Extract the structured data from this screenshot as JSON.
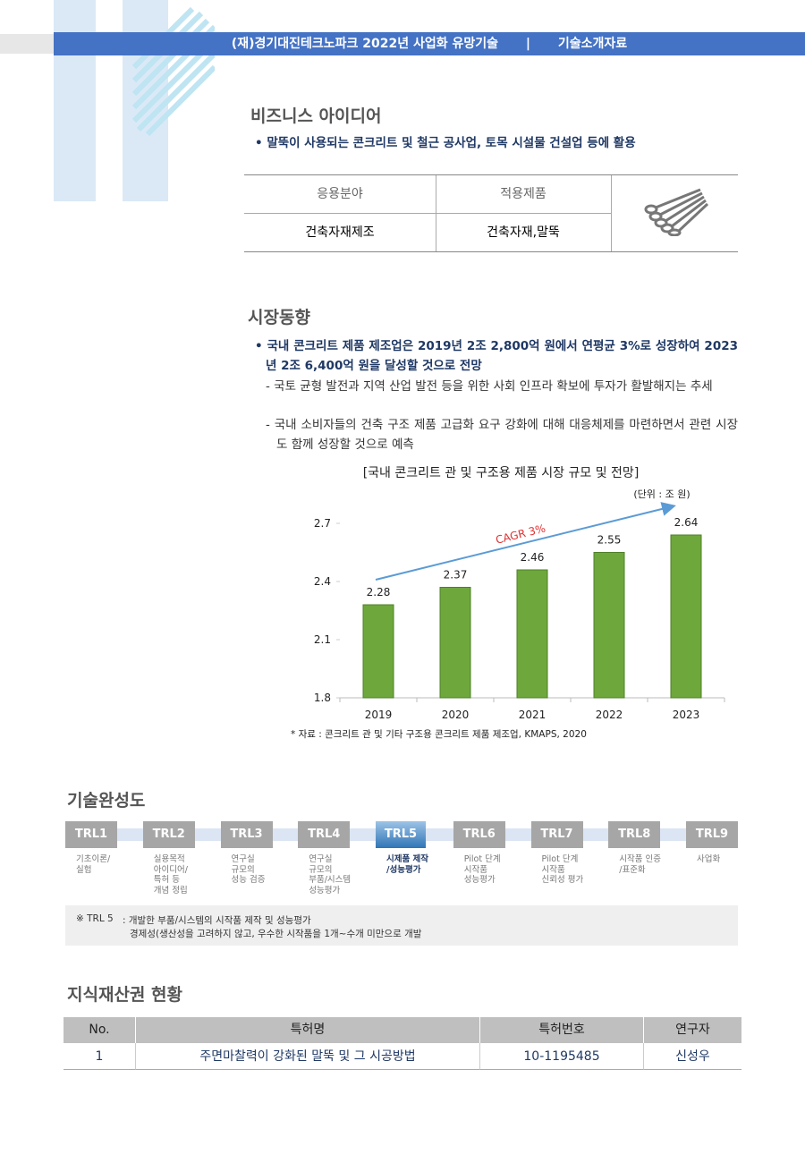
{
  "header": {
    "title": "(재)경기대진테크노파크 2022년 사업화 유망기술",
    "separator": "|",
    "subtitle": "기술소개자료"
  },
  "business": {
    "title": "비즈니스 아이디어",
    "bullet": "말뚝이 사용되는 콘크리트 및 철근 공사업, 토목 시설물 건설업 등에 활용",
    "table": {
      "headers": [
        "응용분야",
        "적용제품"
      ],
      "row": [
        "건축자재제조",
        "건축자재,말뚝"
      ]
    }
  },
  "market": {
    "title": "시장동향",
    "bullet": "국내 콘크리트 제품 제조업은 2019년 2조 2,800억 원에서 연평균 3%로 성장하여 2023년 2조 6,400억 원을 달성할 것으로 전망",
    "subs": [
      "국토 균형 발전과 지역 산업 발전 등을 위한 사회 인프라 확보에 투자가 활발해지는 추세",
      "국내 소비자들의 건축 구조 제품 고급화 요구 강화에 대해 대응체제를 마련하면서 관련 시장도 함께 성장할 것으로 예측"
    ]
  },
  "chart_data": {
    "type": "bar",
    "title": "[국내 콘크리트 관 및 구조용 제품 시장 규모 및 전망]",
    "unit": "(단위 : 조 원)",
    "categories": [
      "2019",
      "2020",
      "2021",
      "2022",
      "2023"
    ],
    "values": [
      2.28,
      2.37,
      2.46,
      2.55,
      2.64
    ],
    "color": "#6ea83c",
    "ylim": [
      1.8,
      2.7
    ],
    "yticks": [
      1.8,
      2.1,
      2.4,
      2.7
    ],
    "grid": false,
    "annotation": "CAGR 3%",
    "source": "* 자료 : 콘크리트 관 및 기타 구조용 콘크리트 제품 제조업, KMAPS, 2020"
  },
  "trl": {
    "title": "기술완성도",
    "active": 4,
    "levels": [
      {
        "label": "TRL1",
        "desc": [
          "기초이론/",
          "실험"
        ]
      },
      {
        "label": "TRL2",
        "desc": [
          "실용목적",
          "아이디어/",
          "특허 등",
          "개념 정립"
        ]
      },
      {
        "label": "TRL3",
        "desc": [
          "연구실",
          "규모의",
          "성능 검증"
        ]
      },
      {
        "label": "TRL4",
        "desc": [
          "연구실",
          "규모의",
          "부품/시스템",
          "성능평가"
        ]
      },
      {
        "label": "TRL5",
        "desc": [
          "시제품 제작",
          "/성능평가"
        ]
      },
      {
        "label": "TRL6",
        "desc": [
          "Pilot 단계",
          "시작품",
          "성능평가"
        ]
      },
      {
        "label": "TRL7",
        "desc": [
          "Pilot 단계",
          "시작품",
          "신뢰성 평가"
        ]
      },
      {
        "label": "TRL8",
        "desc": [
          "시작품 인증",
          "/표준화"
        ]
      },
      {
        "label": "TRL9",
        "desc": [
          "사업화"
        ]
      }
    ],
    "note": {
      "mark": "※ TRL 5",
      "line1": ": 개발한 부품/시스템의 시작품 제작 및 성능평가",
      "line2": "경제성(생산성을 고려하지 않고, 우수한 시작품을 1개~수개 미만으로 개발"
    }
  },
  "ip": {
    "title": "지식재산권 현황",
    "headers": [
      "No.",
      "특허명",
      "특허번호",
      "연구자"
    ],
    "rows": [
      [
        "1",
        "주면마찰력이 강화된 말뚝 및 그 시공방법",
        "10-1195485",
        "신성우"
      ]
    ]
  }
}
